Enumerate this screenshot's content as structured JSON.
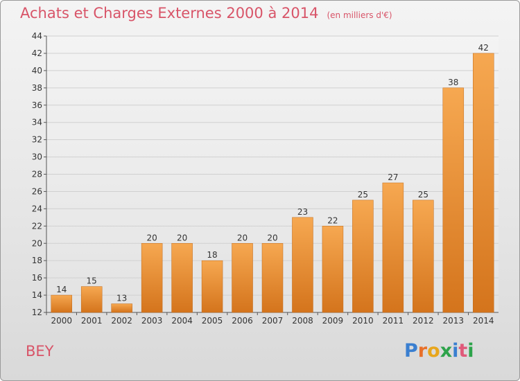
{
  "page": {
    "commune": "BEY",
    "logo_letters": [
      "P",
      "r",
      "o",
      "x",
      "i",
      "t",
      "i"
    ],
    "logo_colors": [
      "#3a7fd0",
      "#e8702a",
      "#e8a61c",
      "#2da34a",
      "#3a7fd0",
      "#e05a7a",
      "#2da34a"
    ]
  },
  "chart_data": {
    "type": "bar",
    "title": "Achats et Charges Externes 2000 à 2014",
    "subtitle": "(en milliers d'€)",
    "categories": [
      "2000",
      "2001",
      "2002",
      "2003",
      "2004",
      "2005",
      "2006",
      "2007",
      "2008",
      "2009",
      "2010",
      "2011",
      "2012",
      "2013",
      "2014"
    ],
    "values": [
      14,
      15,
      13,
      20,
      20,
      18,
      20,
      20,
      23,
      22,
      25,
      27,
      25,
      38,
      42
    ],
    "ylim": [
      12,
      44
    ],
    "yticks": [
      12,
      14,
      16,
      18,
      20,
      22,
      24,
      26,
      28,
      30,
      32,
      34,
      36,
      38,
      40,
      42,
      44
    ],
    "grid": true,
    "colors": {
      "bar_top": "#f6a851",
      "bar_bottom": "#d4741c",
      "grid": "#d0d0d0",
      "axis_text": "#333333"
    }
  }
}
